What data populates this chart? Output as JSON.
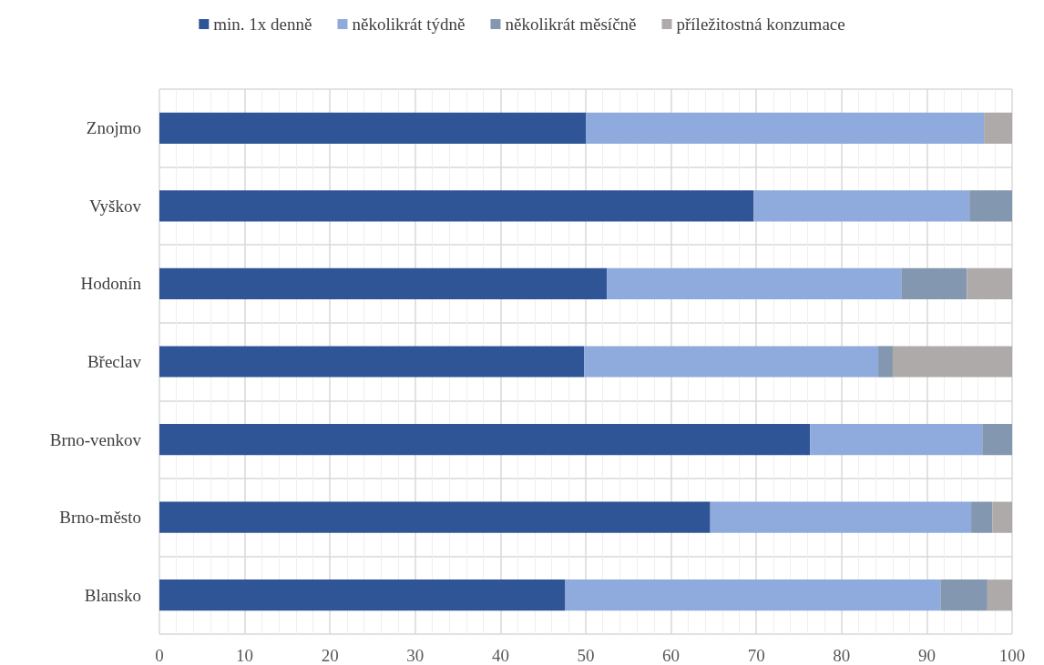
{
  "chart_data": {
    "type": "bar",
    "orientation": "horizontal",
    "stacked": true,
    "categories": [
      "Znojmo",
      "Vyškov",
      "Hodonín",
      "Břeclav",
      "Brno-venkov",
      "Brno-město",
      "Blansko"
    ],
    "series": [
      {
        "name": "min. 1x denně",
        "color": "#2f5597",
        "values": [
          50.0,
          69.7,
          52.5,
          49.8,
          76.3,
          64.6,
          47.6
        ]
      },
      {
        "name": "několikrát týdně",
        "color": "#8faadc",
        "values": [
          46.7,
          25.3,
          34.5,
          34.5,
          20.2,
          30.6,
          44.0
        ]
      },
      {
        "name": "několikrát měsíčně",
        "color": "#8497b0",
        "values": [
          null,
          5.0,
          7.7,
          1.7,
          3.5,
          2.5,
          5.5
        ]
      },
      {
        "name": "příležitostná konzumace",
        "color": "#aeaaaa",
        "values": [
          3.3,
          null,
          5.3,
          14.0,
          null,
          2.3,
          2.9
        ]
      }
    ],
    "xlim": [
      0,
      100
    ],
    "xticks": [
      0,
      10,
      20,
      30,
      40,
      50,
      60,
      70,
      80,
      90,
      100
    ],
    "grid": true,
    "legend": "top"
  }
}
